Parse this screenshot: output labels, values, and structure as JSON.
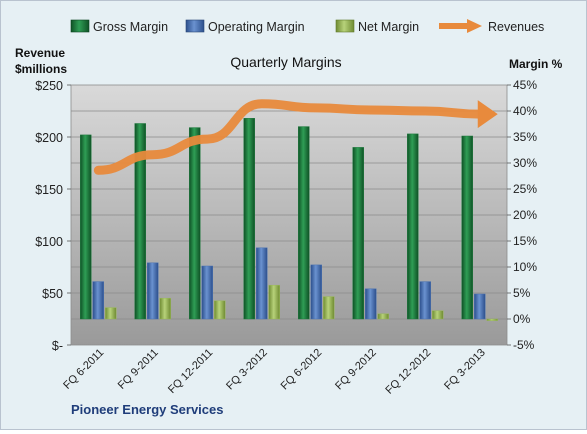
{
  "chart_data": {
    "type": "bar",
    "title": "Quarterly Margins",
    "company": "Pioneer Energy Services",
    "left_axis": {
      "label_line1": "Revenue",
      "label_line2": "$millions",
      "range": [
        0,
        250
      ],
      "ticks": [
        0,
        50,
        100,
        150,
        200,
        250
      ],
      "tick_labels": [
        "$-",
        "$50",
        "$100",
        "$150",
        "$200",
        "$250"
      ]
    },
    "right_axis": {
      "label": "Margin %",
      "range": [
        -5,
        45
      ],
      "ticks": [
        -5,
        0,
        5,
        10,
        15,
        20,
        25,
        30,
        35,
        40,
        45
      ],
      "tick_labels": [
        "-5%",
        "0%",
        "5%",
        "10%",
        "15%",
        "20%",
        "25%",
        "30%",
        "35%",
        "40%",
        "45%"
      ]
    },
    "categories": [
      "FQ 6-2011",
      "FQ 9-2011",
      "FQ 12-2011",
      "FQ 3-2012",
      "FQ 6-2012",
      "FQ 9-2012",
      "FQ 12-2012",
      "FQ 3-2013"
    ],
    "series": [
      {
        "name": "Gross Margin",
        "axis": "right",
        "kind": "bar",
        "color": "#1e7a3e",
        "values": [
          35.4,
          37.6,
          36.8,
          38.6,
          37.0,
          33.0,
          35.6,
          35.2
        ]
      },
      {
        "name": "Operating Margin",
        "axis": "right",
        "kind": "bar",
        "color": "#4a73b3",
        "values": [
          7.2,
          10.8,
          10.2,
          13.7,
          10.4,
          5.8,
          7.2,
          4.8
        ]
      },
      {
        "name": "Net Margin",
        "axis": "right",
        "kind": "bar",
        "color": "#9bbb59",
        "values": [
          2.2,
          4.0,
          3.5,
          6.5,
          4.3,
          1.0,
          1.6,
          -0.3
        ]
      },
      {
        "name": "Revenues",
        "axis": "left",
        "kind": "line",
        "color": "#e88a3c",
        "values": [
          168,
          183,
          198,
          232,
          228,
          226,
          225,
          222
        ]
      }
    ],
    "grid": true,
    "legend": "top"
  }
}
